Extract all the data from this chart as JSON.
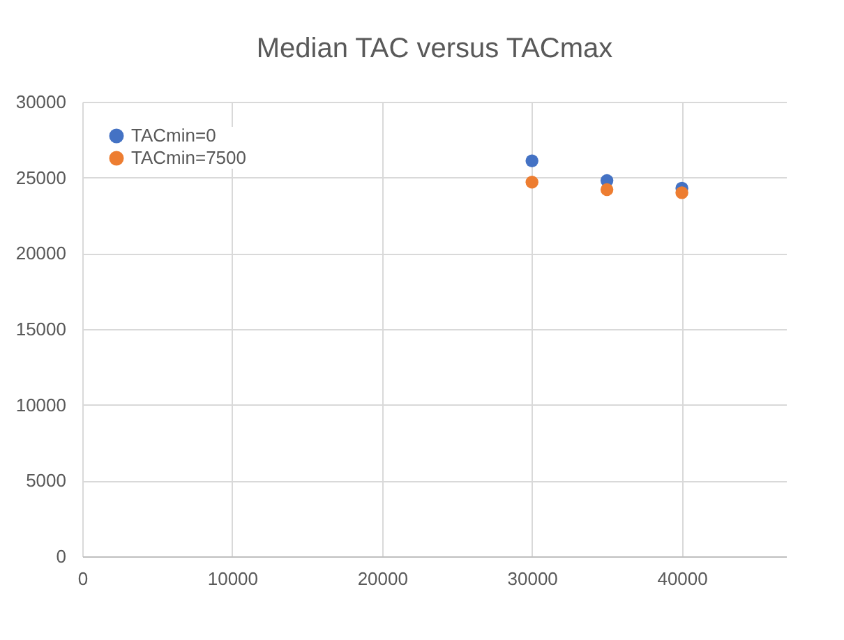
{
  "chart_data": {
    "type": "scatter",
    "title": "Median TAC versus TACmax",
    "x": [
      30000,
      35000,
      40000
    ],
    "series": [
      {
        "name": "TACmin=0",
        "color": "#4472c4",
        "values": [
          26100,
          24800,
          24300
        ]
      },
      {
        "name": "TACmin=7500",
        "color": "#ed7d31",
        "values": [
          24700,
          24200,
          24000
        ]
      }
    ],
    "xlim": [
      0,
      47000
    ],
    "xticks": [
      0,
      10000,
      20000,
      30000,
      40000
    ],
    "ylim": [
      0,
      30000
    ],
    "yticks": [
      0,
      5000,
      10000,
      15000,
      20000,
      25000,
      30000
    ],
    "grid": true,
    "legend": "top left",
    "marker": "circle"
  }
}
